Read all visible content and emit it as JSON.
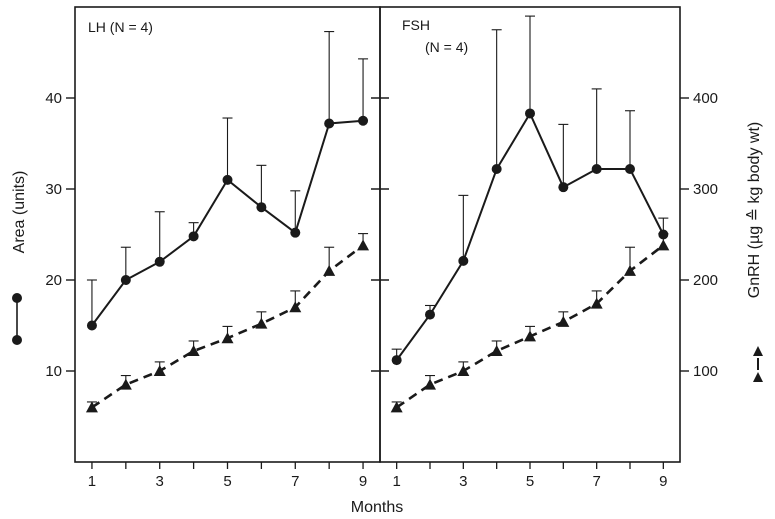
{
  "chart_data": {
    "type": "line",
    "xlabel": "Months",
    "ylabel_left": "Area (units)",
    "ylabel_right": "GnRH (µg ≙ kg body wt)",
    "left_axis": {
      "ylim": [
        0,
        50
      ],
      "ticks": [
        10,
        20,
        30,
        40
      ]
    },
    "right_axis": {
      "ylim": [
        0,
        500
      ],
      "ticks": [
        100,
        200,
        300,
        400
      ]
    },
    "x_ticks": [
      1,
      3,
      5,
      7,
      9
    ],
    "x_range": [
      0.5,
      9.5
    ],
    "panels": [
      {
        "title": "LH (N = 4)",
        "series": [
          {
            "style": "solid-circle",
            "axis": "left",
            "x": [
              1,
              2,
              3,
              4,
              5,
              6,
              7,
              8,
              9
            ],
            "y": [
              15,
              20,
              22,
              24.8,
              31,
              28,
              25.2,
              37.2,
              37.5
            ],
            "error_upper": [
              20,
              23.6,
              27.5,
              26.3,
              37.8,
              32.6,
              29.8,
              47.3,
              44.3
            ]
          },
          {
            "style": "dashed-triangle",
            "axis": "right",
            "x": [
              1,
              2,
              3,
              4,
              5,
              6,
              7,
              8,
              9
            ],
            "y": [
              60,
              85,
              100,
              122,
              136,
              152,
              170,
              210,
              238
            ],
            "error_upper": [
              66,
              95,
              110,
              133,
              149,
              165,
              188,
              236,
              251
            ]
          }
        ]
      },
      {
        "title": "FSH",
        "subtitle": "(N = 4)",
        "series": [
          {
            "style": "solid-circle",
            "axis": "left",
            "x": [
              1,
              2,
              3,
              4,
              5,
              6,
              7,
              8,
              9
            ],
            "y": [
              11.2,
              16.2,
              22.1,
              32.2,
              38.3,
              30.2,
              32.2,
              32.2,
              25
            ],
            "error_upper": [
              12.4,
              17.2,
              29.3,
              47.5,
              49,
              37.1,
              41,
              38.6,
              26.8
            ]
          },
          {
            "style": "dashed-triangle",
            "axis": "right",
            "x": [
              1,
              2,
              3,
              4,
              5,
              6,
              7,
              8,
              9
            ],
            "y": [
              60,
              85,
              100,
              122,
              138,
              154,
              174,
              210,
              238
            ],
            "error_upper": [
              66,
              95,
              110,
              133,
              149,
              165,
              188,
              236,
              251
            ]
          }
        ]
      }
    ]
  }
}
